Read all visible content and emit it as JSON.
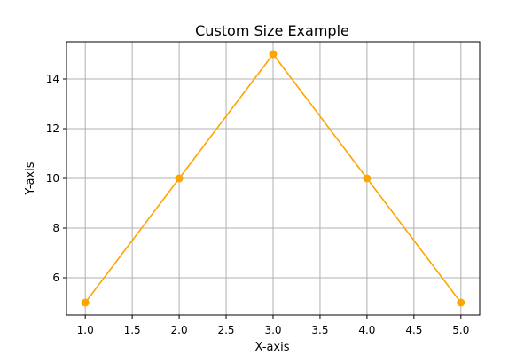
{
  "chart_data": {
    "type": "line",
    "title": "Custom Size Example",
    "xlabel": "X-axis",
    "ylabel": "Y-axis",
    "x": [
      1,
      2,
      3,
      4,
      5
    ],
    "series": [
      {
        "values": [
          5,
          10,
          15,
          10,
          5
        ],
        "color": "#ffa500",
        "marker": "circle"
      }
    ],
    "xlim": [
      0.8,
      5.2
    ],
    "ylim": [
      4.5,
      15.5
    ],
    "xticks": [
      1.0,
      1.5,
      2.0,
      2.5,
      3.0,
      3.5,
      4.0,
      4.5,
      5.0
    ],
    "xtick_labels": [
      "1.0",
      "1.5",
      "2.0",
      "2.5",
      "3.0",
      "3.5",
      "4.0",
      "4.5",
      "5.0"
    ],
    "yticks": [
      6,
      8,
      10,
      12,
      14
    ],
    "ytick_labels": [
      "6",
      "8",
      "10",
      "12",
      "14"
    ],
    "grid": true,
    "legend": "none"
  }
}
